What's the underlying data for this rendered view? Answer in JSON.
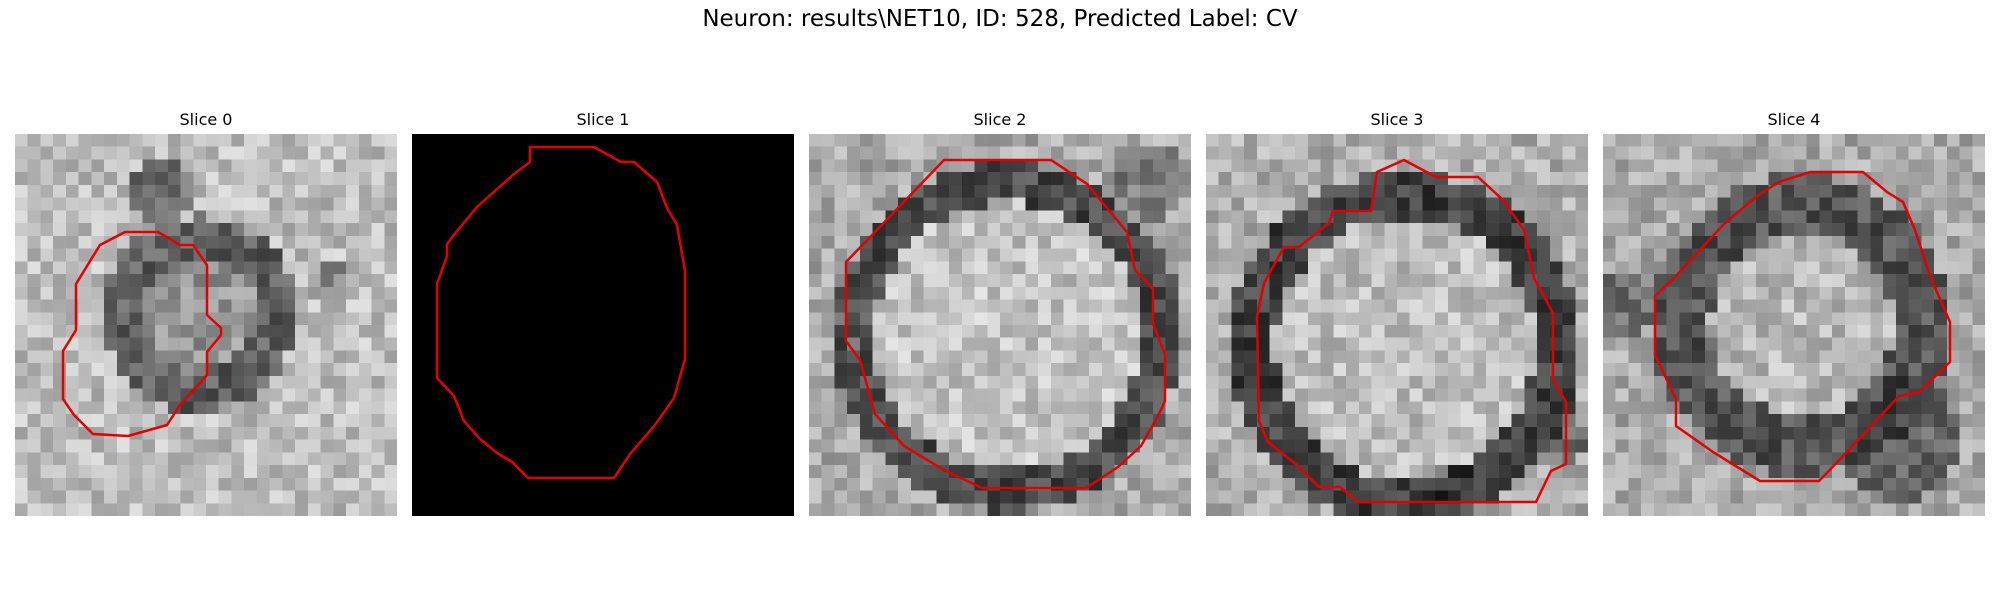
{
  "figure": {
    "title": "Neuron: results\\NET10, ID: 528, Predicted Label: CV",
    "contour_color": "#e00000"
  },
  "slices": [
    {
      "title": "Slice 0",
      "image": "grayscale microscopy patch, small dark ring (vesicle) centered slightly left",
      "blank": false
    },
    {
      "title": "Slice 1",
      "image": "black image",
      "blank": true
    },
    {
      "title": "Slice 2",
      "image": "grayscale microscopy patch, large bright round vesicle with dark rim",
      "blank": false
    },
    {
      "title": "Slice 3",
      "image": "grayscale microscopy patch, large round vesicle with dark ring boundary",
      "blank": false
    },
    {
      "title": "Slice 4",
      "image": "grayscale microscopy patch, round vesicle with dark surrounding region",
      "blank": false
    }
  ]
}
